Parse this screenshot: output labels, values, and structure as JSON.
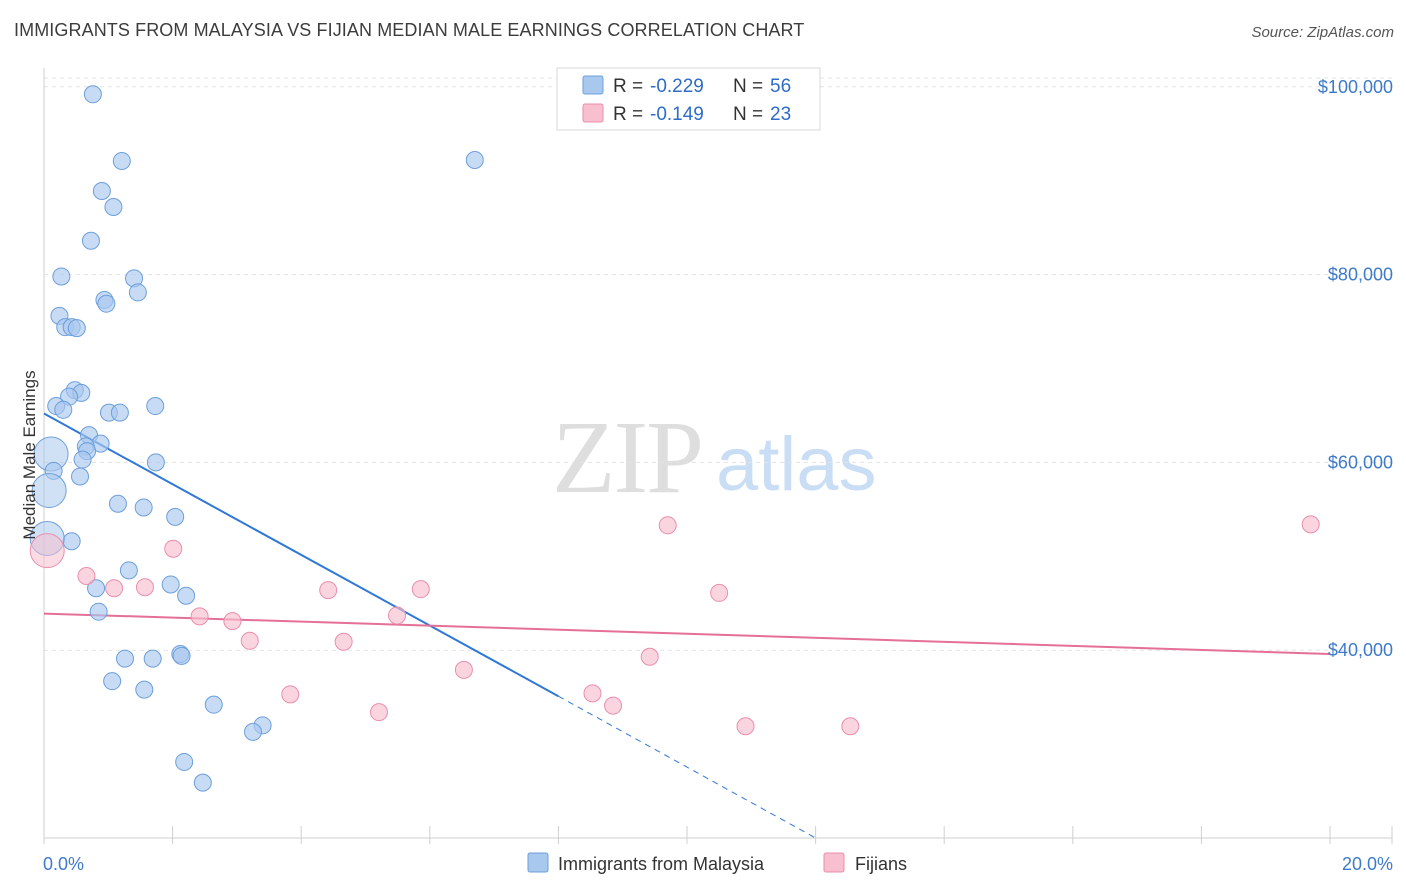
{
  "title": "IMMIGRANTS FROM MALAYSIA VS FIJIAN MEDIAN MALE EARNINGS CORRELATION CHART",
  "source": "Source: ZipAtlas.com",
  "watermark": {
    "zip": "ZIP",
    "atlas": "atlas"
  },
  "colors": {
    "blue_fill": "#a9c8ee",
    "blue_stroke": "#6d9fdc",
    "blue_line": "#2f78d8",
    "pink_fill": "#f7bfd0",
    "pink_stroke": "#ea8fab",
    "pink_line": "#e46f97",
    "grid": "#e3e3e3",
    "axis_label": "#3e7acb"
  },
  "legend": {
    "rows": [
      {
        "r_label": "R = ",
        "r_value": "-0.229",
        "n_label": "N = ",
        "n_value": "56"
      },
      {
        "r_label": "R = ",
        "r_value": "-0.149",
        "n_label": "N = ",
        "n_value": "23"
      }
    ]
  },
  "bottom_legend": [
    "Immigrants from Malaysia",
    "Fijians"
  ],
  "chart_data": {
    "type": "scatter",
    "title": "IMMIGRANTS FROM MALAYSIA VS FIJIAN MEDIAN MALE EARNINGS CORRELATION CHART",
    "xlabel": "",
    "ylabel": "Median Male Earnings",
    "xlim": [
      0,
      20
    ],
    "ylim": [
      20000,
      102000
    ],
    "x_tick_labels": [
      "0.0%",
      "20.0%"
    ],
    "y_ticks": [
      40000,
      60000,
      80000,
      100000
    ],
    "y_tick_labels": [
      "$40,000",
      "$60,000",
      "$80,000",
      "$100,000"
    ],
    "grid": true,
    "series": [
      {
        "name": "Immigrants from Malaysia",
        "r": -0.229,
        "n": 56,
        "trend": {
          "x0": 0.0,
          "y0": 65200,
          "x1": 8.0,
          "y1": 35100,
          "dash_to_x": 12.0,
          "dash_to_y": 20000
        },
        "points": [
          {
            "x": 0.76,
            "y": 99200,
            "big": false
          },
          {
            "x": 1.21,
            "y": 92100,
            "big": false
          },
          {
            "x": 0.9,
            "y": 88900,
            "big": false
          },
          {
            "x": 1.08,
            "y": 87200,
            "big": false
          },
          {
            "x": 0.73,
            "y": 83600,
            "big": false
          },
          {
            "x": 0.27,
            "y": 79800,
            "big": false
          },
          {
            "x": 1.4,
            "y": 79600,
            "big": false
          },
          {
            "x": 1.46,
            "y": 78100,
            "big": false
          },
          {
            "x": 0.94,
            "y": 77300,
            "big": false
          },
          {
            "x": 0.97,
            "y": 76900,
            "big": false
          },
          {
            "x": 0.24,
            "y": 75600,
            "big": false
          },
          {
            "x": 0.33,
            "y": 74400,
            "big": false
          },
          {
            "x": 0.43,
            "y": 74400,
            "big": false
          },
          {
            "x": 0.51,
            "y": 74300,
            "big": false
          },
          {
            "x": 0.48,
            "y": 67700,
            "big": false
          },
          {
            "x": 0.58,
            "y": 67400,
            "big": false
          },
          {
            "x": 0.39,
            "y": 67000,
            "big": false
          },
          {
            "x": 0.19,
            "y": 66000,
            "big": false
          },
          {
            "x": 0.3,
            "y": 65600,
            "big": false
          },
          {
            "x": 1.73,
            "y": 66000,
            "big": false
          },
          {
            "x": 1.01,
            "y": 65300,
            "big": false
          },
          {
            "x": 1.18,
            "y": 65300,
            "big": false
          },
          {
            "x": 0.7,
            "y": 62900,
            "big": false
          },
          {
            "x": 0.88,
            "y": 62000,
            "big": false
          },
          {
            "x": 0.65,
            "y": 61700,
            "big": false
          },
          {
            "x": 0.67,
            "y": 61200,
            "big": false
          },
          {
            "x": 0.11,
            "y": 60900,
            "big": true
          },
          {
            "x": 0.6,
            "y": 60300,
            "big": false
          },
          {
            "x": 1.74,
            "y": 60000,
            "big": false
          },
          {
            "x": 0.15,
            "y": 59100,
            "big": false
          },
          {
            "x": 0.56,
            "y": 58500,
            "big": false
          },
          {
            "x": 0.08,
            "y": 57000,
            "big": true
          },
          {
            "x": 1.15,
            "y": 55600,
            "big": false
          },
          {
            "x": 1.55,
            "y": 55200,
            "big": false
          },
          {
            "x": 2.04,
            "y": 54200,
            "big": false
          },
          {
            "x": 0.43,
            "y": 51600,
            "big": false
          },
          {
            "x": 0.05,
            "y": 51900,
            "big": true
          },
          {
            "x": 1.32,
            "y": 48500,
            "big": false
          },
          {
            "x": 1.97,
            "y": 47000,
            "big": false
          },
          {
            "x": 0.81,
            "y": 46600,
            "big": false
          },
          {
            "x": 2.21,
            "y": 45800,
            "big": false
          },
          {
            "x": 0.85,
            "y": 44100,
            "big": false
          },
          {
            "x": 1.26,
            "y": 39100,
            "big": false
          },
          {
            "x": 1.69,
            "y": 39100,
            "big": false
          },
          {
            "x": 2.12,
            "y": 39600,
            "big": false
          },
          {
            "x": 2.14,
            "y": 39400,
            "big": false
          },
          {
            "x": 1.06,
            "y": 36700,
            "big": false
          },
          {
            "x": 1.56,
            "y": 35800,
            "big": false
          },
          {
            "x": 2.64,
            "y": 34200,
            "big": false
          },
          {
            "x": 3.4,
            "y": 32000,
            "big": false
          },
          {
            "x": 3.25,
            "y": 31300,
            "big": false
          },
          {
            "x": 2.18,
            "y": 28100,
            "big": false
          },
          {
            "x": 2.47,
            "y": 25900,
            "big": false
          },
          {
            "x": 6.7,
            "y": 92200,
            "big": false
          }
        ]
      },
      {
        "name": "Fijians",
        "r": -0.149,
        "n": 23,
        "trend": {
          "x0": 0.0,
          "y0": 43900,
          "x1": 20.0,
          "y1": 39600
        },
        "points": [
          {
            "x": 0.05,
            "y": 50600,
            "big": true
          },
          {
            "x": 2.01,
            "y": 50800,
            "big": false
          },
          {
            "x": 0.66,
            "y": 47900,
            "big": false
          },
          {
            "x": 1.09,
            "y": 46600,
            "big": false
          },
          {
            "x": 1.57,
            "y": 46700,
            "big": false
          },
          {
            "x": 4.42,
            "y": 46400,
            "big": false
          },
          {
            "x": 5.86,
            "y": 46500,
            "big": false
          },
          {
            "x": 2.42,
            "y": 43600,
            "big": false
          },
          {
            "x": 2.93,
            "y": 43100,
            "big": false
          },
          {
            "x": 5.49,
            "y": 43700,
            "big": false
          },
          {
            "x": 3.2,
            "y": 41000,
            "big": false
          },
          {
            "x": 4.66,
            "y": 40900,
            "big": false
          },
          {
            "x": 9.7,
            "y": 53300,
            "big": false
          },
          {
            "x": 10.5,
            "y": 46100,
            "big": false
          },
          {
            "x": 9.42,
            "y": 39300,
            "big": false
          },
          {
            "x": 6.53,
            "y": 37900,
            "big": false
          },
          {
            "x": 3.83,
            "y": 35300,
            "big": false
          },
          {
            "x": 8.53,
            "y": 35400,
            "big": false
          },
          {
            "x": 8.85,
            "y": 34100,
            "big": false
          },
          {
            "x": 5.21,
            "y": 33400,
            "big": false
          },
          {
            "x": 10.91,
            "y": 31900,
            "big": false
          },
          {
            "x": 12.54,
            "y": 31900,
            "big": false
          },
          {
            "x": 19.7,
            "y": 53400,
            "big": false
          }
        ]
      }
    ]
  }
}
